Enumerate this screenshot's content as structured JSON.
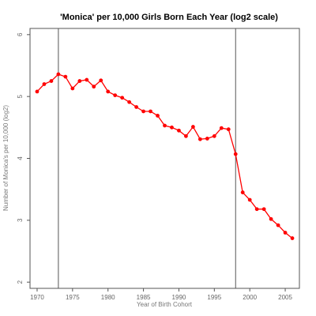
{
  "chart_data": {
    "type": "line",
    "title": "'Monica' per 10,000 Girls Born Each Year (log2 scale)",
    "xlabel": "Year of Birth Cohort",
    "ylabel": "Number of Monica's per 10,000 (log2)",
    "xlim": [
      1969,
      2007
    ],
    "ylim": [
      1.9,
      6.1
    ],
    "x_ticks": [
      1970,
      1975,
      1980,
      1985,
      1990,
      1995,
      2000,
      2005
    ],
    "y_ticks": [
      2,
      3,
      4,
      5,
      6
    ],
    "reference_lines_x": [
      1973,
      1998
    ],
    "grid": false,
    "series": [
      {
        "color": "#ff0000",
        "x": [
          1970,
          1971,
          1972,
          1973,
          1974,
          1975,
          1976,
          1977,
          1978,
          1979,
          1980,
          1981,
          1982,
          1983,
          1984,
          1985,
          1986,
          1987,
          1988,
          1989,
          1990,
          1991,
          1992,
          1993,
          1994,
          1995,
          1996,
          1997,
          1998,
          1999,
          2000,
          2001,
          2002,
          2003,
          2004,
          2005,
          2006
        ],
        "values": [
          5.08,
          5.2,
          5.25,
          5.36,
          5.32,
          5.13,
          5.25,
          5.27,
          5.16,
          5.26,
          5.08,
          5.02,
          4.98,
          4.91,
          4.83,
          4.76,
          4.76,
          4.69,
          4.53,
          4.5,
          4.45,
          4.36,
          4.51,
          4.31,
          4.32,
          4.36,
          4.49,
          4.47,
          4.07,
          3.45,
          3.33,
          3.18,
          3.18,
          3.02,
          2.92,
          2.8,
          2.71
        ]
      }
    ]
  }
}
